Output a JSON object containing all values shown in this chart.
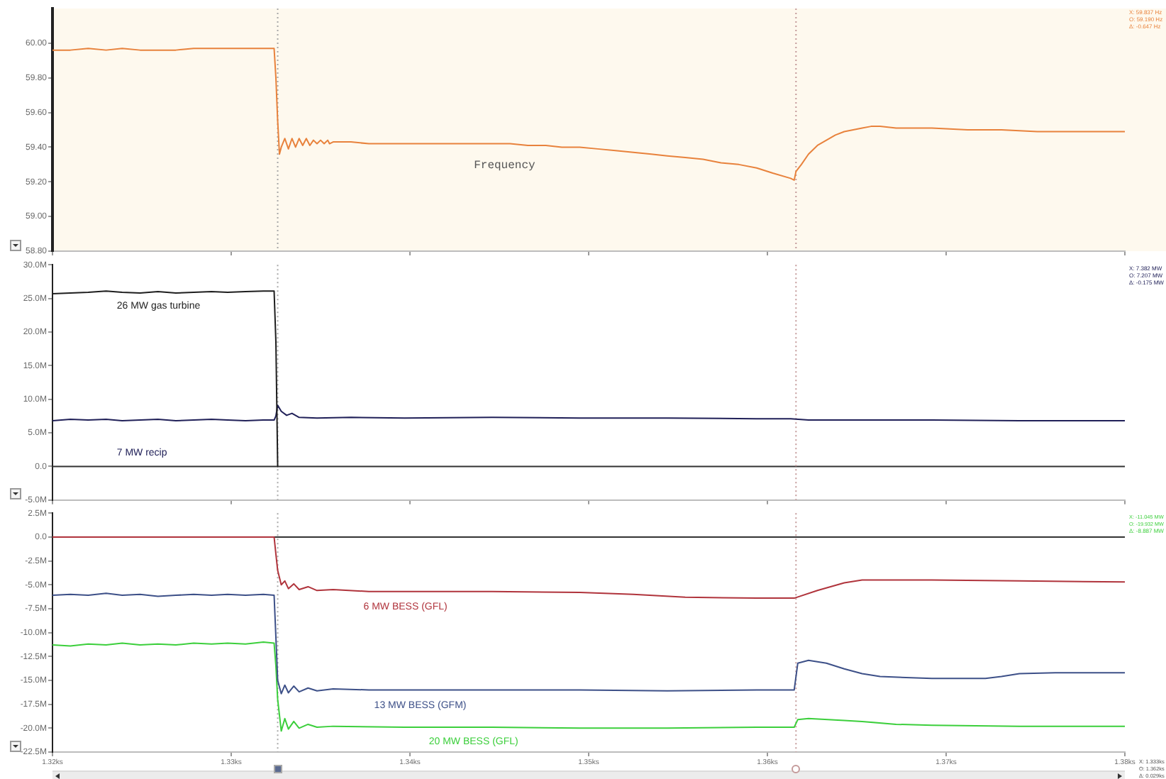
{
  "chart_data": [
    {
      "type": "line",
      "series": [
        {
          "name": "Frequency",
          "color": "#e8823c",
          "x": [
            1.32,
            1.321,
            1.322,
            1.323,
            1.3239,
            1.3249,
            1.3259,
            1.3269,
            1.3279,
            1.3289,
            1.3298,
            1.3308,
            1.3318,
            1.3324,
            1.3325,
            1.3326,
            1.3327,
            1.3328,
            1.333,
            1.3332,
            1.3334,
            1.3336,
            1.3338,
            1.334,
            1.3342,
            1.3344,
            1.3346,
            1.3348,
            1.335,
            1.3352,
            1.3354,
            1.3355,
            1.3357,
            1.3367,
            1.3377,
            1.3387,
            1.3397,
            1.3407,
            1.3417,
            1.3426,
            1.3436,
            1.3446,
            1.3456,
            1.3466,
            1.3476,
            1.3485,
            1.3495,
            1.3505,
            1.3515,
            1.3525,
            1.3535,
            1.3544,
            1.3554,
            1.3564,
            1.3574,
            1.3584,
            1.3594,
            1.3603,
            1.3613,
            1.3615,
            1.3616,
            1.3619,
            1.3623,
            1.3628,
            1.3633,
            1.3638,
            1.3643,
            1.3648,
            1.3653,
            1.3658,
            1.3663,
            1.3672,
            1.3682,
            1.3692,
            1.3712,
            1.3731,
            1.3751,
            1.3771,
            1.379,
            1.38
          ],
          "values": [
            59.96,
            59.96,
            59.97,
            59.96,
            59.97,
            59.96,
            59.96,
            59.96,
            59.97,
            59.97,
            59.97,
            59.97,
            59.97,
            59.97,
            59.8,
            59.55,
            59.36,
            59.4,
            59.45,
            59.39,
            59.45,
            59.4,
            59.45,
            59.41,
            59.45,
            59.41,
            59.44,
            59.42,
            59.44,
            59.42,
            59.44,
            59.42,
            59.43,
            59.43,
            59.42,
            59.42,
            59.42,
            59.42,
            59.42,
            59.42,
            59.42,
            59.42,
            59.42,
            59.41,
            59.41,
            59.4,
            59.4,
            59.39,
            59.38,
            59.37,
            59.36,
            59.35,
            59.34,
            59.33,
            59.31,
            59.3,
            59.28,
            59.25,
            59.22,
            59.21,
            59.26,
            59.3,
            59.36,
            59.41,
            59.44,
            59.47,
            59.49,
            59.5,
            59.51,
            59.52,
            59.52,
            59.51,
            59.51,
            59.51,
            59.5,
            59.5,
            59.49,
            59.49,
            59.49,
            59.49
          ]
        }
      ],
      "xlim": [
        1.32,
        1.38
      ],
      "ylim": [
        58.8,
        60.2
      ],
      "yticks": [
        {
          "value": 58.8,
          "label": "58.80"
        },
        {
          "value": 59,
          "label": "59.00"
        },
        {
          "value": 59.2,
          "label": "59.20"
        },
        {
          "value": 59.4,
          "label": "59.40"
        },
        {
          "value": 59.6,
          "label": "59.60"
        },
        {
          "value": 59.8,
          "label": "59.80"
        },
        {
          "value": 60,
          "label": "60.00"
        }
      ],
      "tick_labels": "y",
      "ref_lines": [
        {
          "axis": "x",
          "value": 1.3326,
          "color": "#a8a8a8",
          "line_style": "dotted"
        },
        {
          "axis": "x",
          "value": 1.3616,
          "color": "#c49a9a",
          "line_style": "dotted"
        }
      ],
      "annotations": [
        "X: 59.837 Hz",
        "O: 59.190 Hz",
        "Δ: -0.647 Hz"
      ]
    },
    {
      "type": "line",
      "series": [
        {
          "name": "26 MW gas turbine",
          "color": "#1e1e1e",
          "x": [
            1.32,
            1.321,
            1.322,
            1.323,
            1.3239,
            1.3249,
            1.3259,
            1.3269,
            1.3279,
            1.3289,
            1.3298,
            1.3308,
            1.3318,
            1.3324,
            1.3325,
            1.3326
          ],
          "values": [
            25.7,
            25.8,
            25.9,
            26.1,
            25.9,
            25.8,
            26.0,
            25.8,
            25.9,
            26.0,
            25.9,
            26.0,
            26.1,
            26.1,
            18.5,
            0
          ]
        },
        {
          "name": "7 MW recip",
          "color": "#202058",
          "x": [
            1.32,
            1.321,
            1.322,
            1.323,
            1.3239,
            1.3249,
            1.3259,
            1.3269,
            1.3279,
            1.3289,
            1.3298,
            1.3308,
            1.3318,
            1.3324,
            1.3325,
            1.3326,
            1.3328,
            1.3331,
            1.3334,
            1.3338,
            1.3348,
            1.3367,
            1.3397,
            1.3446,
            1.3495,
            1.3544,
            1.3594,
            1.3613,
            1.3623,
            1.3643,
            1.3692,
            1.3741,
            1.38
          ],
          "values": [
            6.8,
            7.0,
            6.9,
            7.0,
            6.8,
            6.9,
            7.0,
            6.8,
            6.9,
            7.0,
            6.9,
            6.8,
            6.9,
            6.9,
            7.5,
            9.1,
            8.2,
            7.6,
            7.9,
            7.3,
            7.2,
            7.3,
            7.2,
            7.3,
            7.2,
            7.2,
            7.1,
            7.1,
            6.9,
            6.9,
            6.9,
            6.8,
            6.8
          ]
        }
      ],
      "xlim": [
        1.32,
        1.38
      ],
      "ylim": [
        -5,
        30
      ],
      "yticks": [
        {
          "value": -5,
          "label": "-5.0M"
        },
        {
          "value": 0,
          "label": "0.0"
        },
        {
          "value": 5,
          "label": "5.0M"
        },
        {
          "value": 10,
          "label": "10.0M"
        },
        {
          "value": 15,
          "label": "15.0M"
        },
        {
          "value": 20,
          "label": "20.0M"
        },
        {
          "value": 25,
          "label": "25.0M"
        },
        {
          "value": 30,
          "label": "30.0M"
        }
      ],
      "tick_labels": "y",
      "ref_lines": [
        {
          "axis": "y",
          "value": 0,
          "color": "#333333"
        },
        {
          "axis": "x",
          "value": 1.3326,
          "color": "#a8a8a8",
          "line_style": "dotted"
        },
        {
          "axis": "x",
          "value": 1.3616,
          "color": "#c49a9a",
          "line_style": "dotted"
        }
      ],
      "annotations": [
        "X: 7.382 MW",
        "O: 7.207 MW",
        "Δ: -0.175 MW"
      ]
    },
    {
      "type": "line",
      "series": [
        {
          "name": "6 MW BESS (GFL)",
          "color": "#b0343c",
          "x": [
            1.32,
            1.3324,
            1.3325,
            1.3326,
            1.3328,
            1.333,
            1.3332,
            1.3335,
            1.3338,
            1.3343,
            1.3348,
            1.3357,
            1.3377,
            1.3397,
            1.3446,
            1.3495,
            1.3525,
            1.3554,
            1.3594,
            1.3615,
            1.3628,
            1.3643,
            1.3653,
            1.3692,
            1.3741,
            1.38
          ],
          "values": [
            0,
            0,
            -1.8,
            -3.5,
            -5.0,
            -4.6,
            -5.4,
            -4.9,
            -5.5,
            -5.2,
            -5.6,
            -5.5,
            -5.7,
            -5.7,
            -5.7,
            -5.8,
            -6.0,
            -6.3,
            -6.4,
            -6.4,
            -5.6,
            -4.8,
            -4.5,
            -4.5,
            -4.6,
            -4.7
          ]
        },
        {
          "name": "13 MW BESS (GFM)",
          "color": "#3d5088",
          "x": [
            1.32,
            1.321,
            1.322,
            1.323,
            1.3239,
            1.3249,
            1.3259,
            1.3269,
            1.3279,
            1.3289,
            1.3298,
            1.3308,
            1.3318,
            1.3324,
            1.3325,
            1.3326,
            1.3328,
            1.333,
            1.3332,
            1.3335,
            1.3338,
            1.3343,
            1.3348,
            1.3357,
            1.3377,
            1.3397,
            1.3446,
            1.3495,
            1.3544,
            1.3594,
            1.3615,
            1.3617,
            1.3623,
            1.3633,
            1.3643,
            1.3653,
            1.3663,
            1.3692,
            1.3722,
            1.3731,
            1.3741,
            1.3761,
            1.38
          ],
          "values": [
            -6.1,
            -6.0,
            -6.1,
            -5.9,
            -6.1,
            -6.0,
            -6.2,
            -6.1,
            -6.0,
            -6.1,
            -6.0,
            -6.1,
            -6.0,
            -6.1,
            -10.5,
            -15.0,
            -16.4,
            -15.5,
            -16.3,
            -15.6,
            -16.2,
            -15.8,
            -16.1,
            -15.9,
            -16.0,
            -16.0,
            -16.0,
            -16.0,
            -16.1,
            -16.0,
            -16.0,
            -13.2,
            -12.9,
            -13.2,
            -13.8,
            -14.3,
            -14.6,
            -14.8,
            -14.8,
            -14.6,
            -14.3,
            -14.2,
            -14.2
          ]
        },
        {
          "name": "20 MW BESS (GFL)",
          "color": "#3ccf3c",
          "x": [
            1.32,
            1.321,
            1.322,
            1.323,
            1.3239,
            1.3249,
            1.3259,
            1.3269,
            1.3279,
            1.3289,
            1.3298,
            1.3308,
            1.3318,
            1.3324,
            1.3325,
            1.3326,
            1.3328,
            1.333,
            1.3332,
            1.3335,
            1.3338,
            1.3343,
            1.3348,
            1.3357,
            1.3397,
            1.3446,
            1.3495,
            1.3544,
            1.3594,
            1.3615,
            1.3617,
            1.3623,
            1.3643,
            1.3653,
            1.3672,
            1.3692,
            1.3741,
            1.38
          ],
          "values": [
            -11.3,
            -11.4,
            -11.2,
            -11.3,
            -11.1,
            -11.3,
            -11.2,
            -11.3,
            -11.1,
            -11.2,
            -11.1,
            -11.2,
            -11.0,
            -11.1,
            -13.5,
            -17.0,
            -20.3,
            -19.0,
            -20.1,
            -19.3,
            -20.0,
            -19.6,
            -19.9,
            -19.8,
            -19.9,
            -19.9,
            -20.0,
            -20.0,
            -19.9,
            -19.9,
            -19.1,
            -19.0,
            -19.2,
            -19.3,
            -19.6,
            -19.7,
            -19.8,
            -19.8
          ]
        }
      ],
      "xlim": [
        1.32,
        1.38
      ],
      "xticks": [
        {
          "value": 1.32,
          "label": "1.32ks"
        },
        {
          "value": 1.33,
          "label": "1.33ks"
        },
        {
          "value": 1.34,
          "label": "1.34ks"
        },
        {
          "value": 1.35,
          "label": "1.35ks"
        },
        {
          "value": 1.36,
          "label": "1.36ks"
        },
        {
          "value": 1.37,
          "label": "1.37ks"
        },
        {
          "value": 1.38,
          "label": "1.38ks"
        }
      ],
      "ylim": [
        -22.5,
        2.5
      ],
      "yticks": [
        {
          "value": -22.5,
          "label": "-22.5M"
        },
        {
          "value": -20,
          "label": "-20.0M"
        },
        {
          "value": -17.5,
          "label": "-17.5M"
        },
        {
          "value": -15,
          "label": "-15.0M"
        },
        {
          "value": -12.5,
          "label": "-12.5M"
        },
        {
          "value": -10,
          "label": "-10.0M"
        },
        {
          "value": -7.5,
          "label": "-7.5M"
        },
        {
          "value": -5,
          "label": "-5.0M"
        },
        {
          "value": -2.5,
          "label": "-2.5M"
        },
        {
          "value": 0,
          "label": "0.0"
        },
        {
          "value": 2.5,
          "label": "2.5M"
        }
      ],
      "ref_lines": [
        {
          "axis": "y",
          "value": 0,
          "color": "#333333"
        },
        {
          "axis": "x",
          "value": 1.3326,
          "color": "#a8a8a8",
          "line_style": "dotted"
        },
        {
          "axis": "x",
          "value": 1.3616,
          "color": "#c49a9a",
          "line_style": "dotted"
        }
      ],
      "annotations": [
        "X: -11.045 MW",
        "O: -19.932 MW",
        "Δ: -8.887 MW",
        "X: 1.333ks",
        "O: 1.362ks",
        "Δ: 0.029ks"
      ]
    }
  ]
}
